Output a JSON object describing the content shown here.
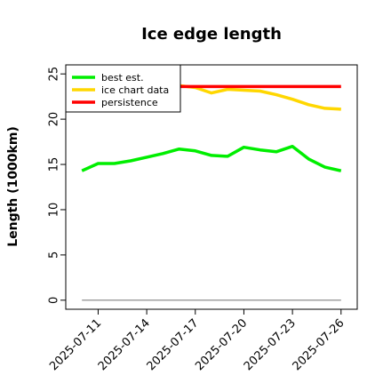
{
  "chart_data": {
    "type": "line",
    "title": "Ice edge length",
    "xlabel": "",
    "ylabel": "Length (1000km)",
    "xlim": [
      "2025-07-09",
      "2025-07-27"
    ],
    "ylim": [
      -1,
      26
    ],
    "yticks": [
      0,
      5,
      10,
      15,
      20,
      25
    ],
    "xticks": [
      "2025-07-11",
      "2025-07-14",
      "2025-07-17",
      "2025-07-20",
      "2025-07-23",
      "2025-07-26"
    ],
    "grid": false,
    "legend_position": "top-left",
    "series": [
      {
        "name": "best est.",
        "color": "#00ee00",
        "x": [
          "2025-07-10",
          "2025-07-11",
          "2025-07-12",
          "2025-07-13",
          "2025-07-14",
          "2025-07-15",
          "2025-07-16",
          "2025-07-17",
          "2025-07-18",
          "2025-07-19",
          "2025-07-20",
          "2025-07-21",
          "2025-07-22",
          "2025-07-23",
          "2025-07-24",
          "2025-07-25",
          "2025-07-26"
        ],
        "y": [
          14.3,
          15.1,
          15.1,
          15.4,
          15.8,
          16.2,
          16.7,
          16.5,
          16.0,
          15.9,
          16.9,
          16.6,
          16.4,
          17.0,
          15.6,
          14.7,
          14.3
        ]
      },
      {
        "name": "ice chart data",
        "color": "#ffd700",
        "x": [
          "2025-07-16",
          "2025-07-17",
          "2025-07-18",
          "2025-07-19",
          "2025-07-20",
          "2025-07-21",
          "2025-07-22",
          "2025-07-23",
          "2025-07-24",
          "2025-07-25",
          "2025-07-26"
        ],
        "y": [
          23.7,
          23.5,
          22.9,
          23.3,
          23.2,
          23.1,
          22.7,
          22.2,
          21.6,
          21.2,
          21.1
        ]
      },
      {
        "name": "persistence",
        "color": "#ff0000",
        "x": [
          "2025-07-16",
          "2025-07-26"
        ],
        "y": [
          23.6,
          23.6
        ]
      },
      {
        "name": "",
        "color": "#808080",
        "x": [
          "2025-07-10",
          "2025-07-26"
        ],
        "y": [
          0,
          0
        ]
      }
    ]
  }
}
